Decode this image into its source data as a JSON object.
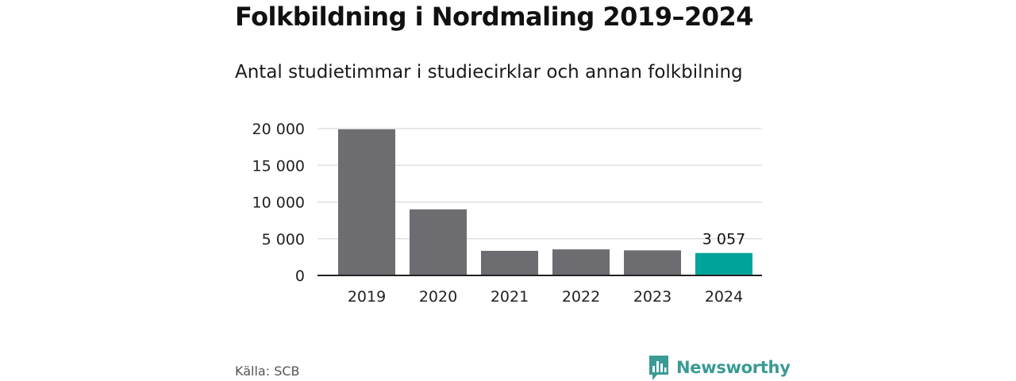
{
  "header": {
    "title": "Folkbildning i Nordmaling 2019–2024",
    "subtitle": "Antal studietimmar i studiecirklar och annan folkbilning"
  },
  "footer": {
    "source": "Källa: SCB",
    "brand": "Newsworthy",
    "brand_icon": "bar-chart-speech-bubble-icon"
  },
  "colors": {
    "bar_default": "#6d6c71",
    "bar_highlight": "#00a39a",
    "grid": "#d9d9d9",
    "axis": "#222222",
    "brand": "#3a9a94"
  },
  "chart_data": {
    "type": "bar",
    "categories": [
      "2019",
      "2020",
      "2021",
      "2022",
      "2023",
      "2024"
    ],
    "values": [
      19900,
      9000,
      3350,
      3550,
      3420,
      3057
    ],
    "highlight_index": 5,
    "data_labels": [
      {
        "index": 5,
        "text": "3 057"
      }
    ],
    "yticks": [
      0,
      5000,
      10000,
      15000,
      20000
    ],
    "ytick_labels": [
      "0",
      "5 000",
      "10 000",
      "15 000",
      "20 000"
    ],
    "ylim": [
      0,
      20000
    ],
    "grid": true,
    "legend": false
  }
}
